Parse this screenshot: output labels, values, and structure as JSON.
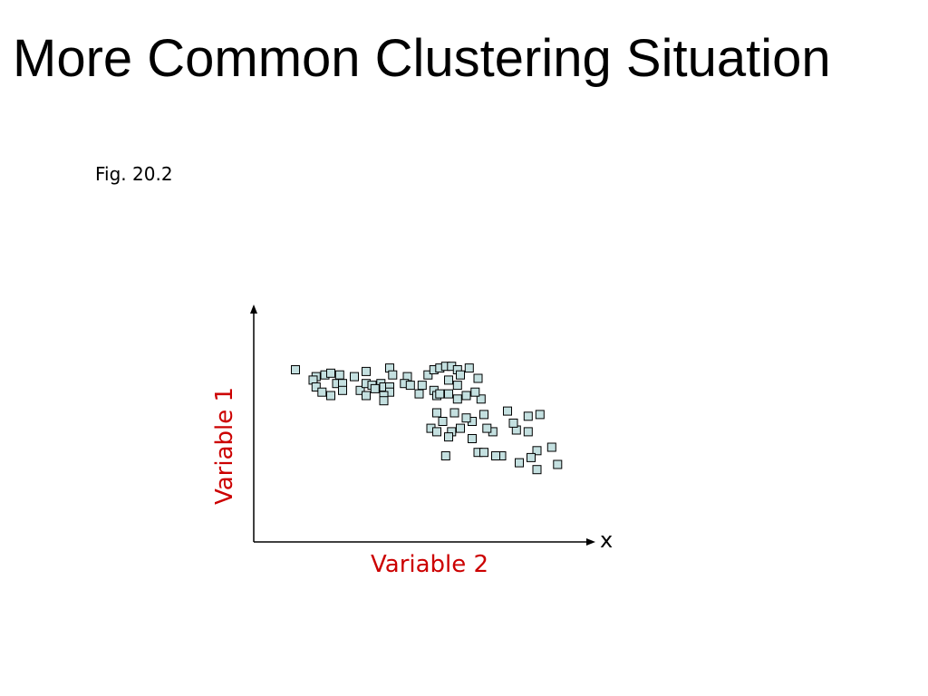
{
  "slide": {
    "title": "More Common Clustering Situation",
    "caption": "Fig. 20.2"
  },
  "chart_data": {
    "type": "scatter",
    "title": "",
    "xlabel": "Variable 2",
    "ylabel": "Variable 1",
    "axis_end_mark": "x",
    "label_color": "#cc0000",
    "marker_fill": "#c4e0e0",
    "marker_stroke": "#000000",
    "axis_color": "#000000",
    "grid": false,
    "ticks": false,
    "xlim": [
      0,
      100
    ],
    "ylim": [
      0,
      100
    ],
    "series": [
      {
        "points": [
          [
            8,
            80
          ],
          [
            15,
            76
          ],
          [
            14,
            74
          ],
          [
            18,
            77
          ],
          [
            23,
            77
          ],
          [
            20,
            78
          ],
          [
            28,
            76
          ],
          [
            32,
            79
          ],
          [
            40,
            81
          ],
          [
            41,
            77
          ],
          [
            37,
            72
          ],
          [
            46,
            76
          ],
          [
            53,
            77
          ],
          [
            55,
            80
          ],
          [
            57,
            81
          ],
          [
            59,
            82
          ],
          [
            61,
            82
          ],
          [
            63,
            80
          ],
          [
            64,
            77
          ],
          [
            67,
            81
          ],
          [
            70,
            75
          ],
          [
            15,
            70
          ],
          [
            17,
            67
          ],
          [
            22,
            72
          ],
          [
            24,
            72
          ],
          [
            24,
            68
          ],
          [
            30,
            68
          ],
          [
            32,
            72
          ],
          [
            34,
            71
          ],
          [
            35,
            69
          ],
          [
            38,
            70
          ],
          [
            40,
            70
          ],
          [
            40,
            67
          ],
          [
            45,
            72
          ],
          [
            47,
            71
          ],
          [
            50,
            66
          ],
          [
            51,
            71
          ],
          [
            55,
            68
          ],
          [
            56,
            65
          ],
          [
            57,
            66
          ],
          [
            60,
            66
          ],
          [
            63,
            63
          ],
          [
            66,
            65
          ],
          [
            71,
            63
          ],
          [
            32,
            65
          ],
          [
            38,
            65
          ],
          [
            38,
            62
          ],
          [
            20,
            65
          ],
          [
            60,
            74
          ],
          [
            63,
            71
          ],
          [
            69,
            67
          ],
          [
            56,
            55
          ],
          [
            62,
            55
          ],
          [
            68,
            50
          ],
          [
            72,
            54
          ],
          [
            80,
            56
          ],
          [
            87,
            53
          ],
          [
            91,
            54
          ],
          [
            66,
            52
          ],
          [
            58,
            50
          ],
          [
            54,
            46
          ],
          [
            56,
            44
          ],
          [
            61,
            44
          ],
          [
            64,
            46
          ],
          [
            75,
            44
          ],
          [
            83,
            45
          ],
          [
            87,
            44
          ],
          [
            60,
            41
          ],
          [
            68,
            40
          ],
          [
            82,
            49
          ],
          [
            70,
            32
          ],
          [
            72,
            32
          ],
          [
            78,
            30
          ],
          [
            90,
            33
          ],
          [
            95,
            35
          ],
          [
            88,
            29
          ],
          [
            76,
            30
          ],
          [
            59,
            30
          ],
          [
            73,
            46
          ],
          [
            90,
            22
          ],
          [
            84,
            26
          ],
          [
            97,
            25
          ]
        ]
      }
    ]
  }
}
